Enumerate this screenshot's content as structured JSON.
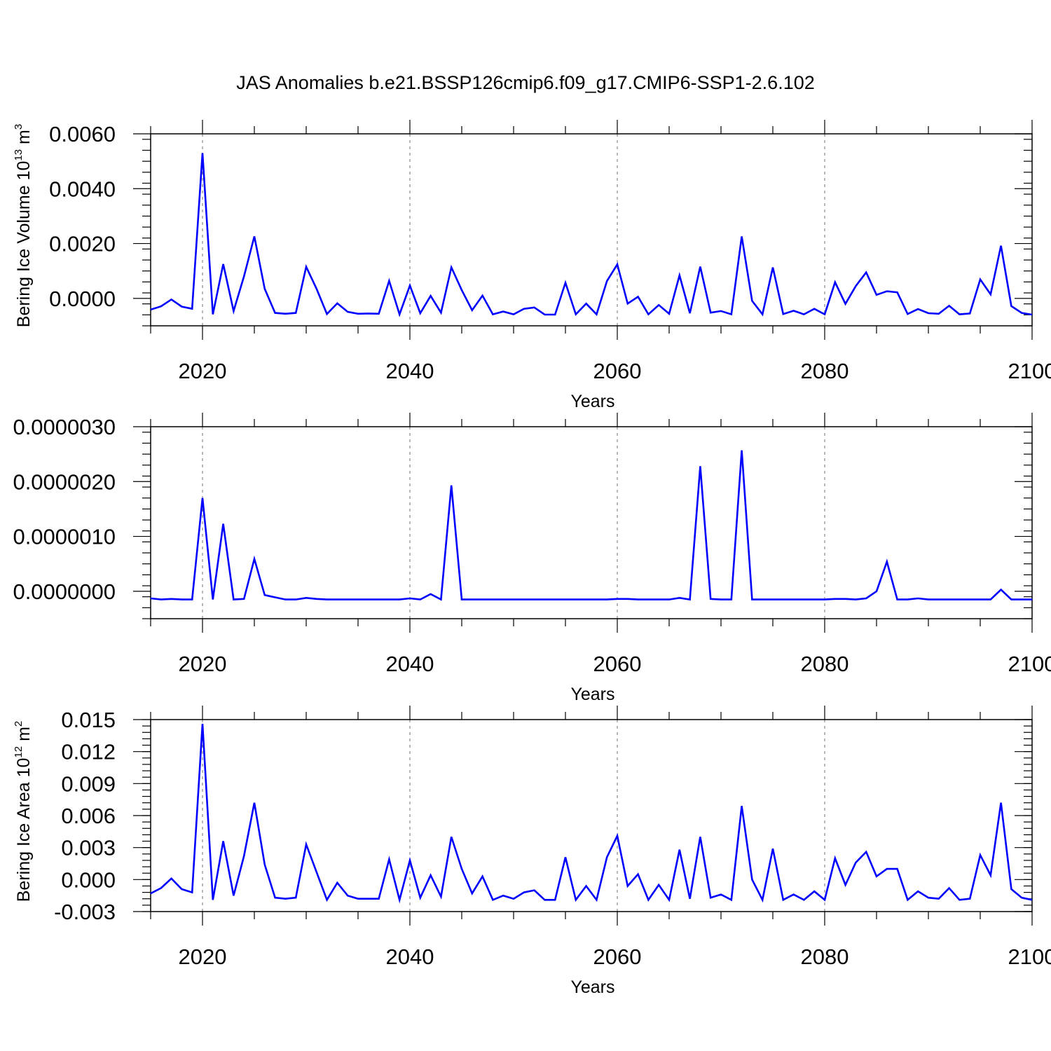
{
  "title": "JAS Anomalies b.e21.BSSP126cmip6.f09_g17.CMIP6-SSP1-2.6.102",
  "line_color": "#0000ff",
  "chart_data": [
    {
      "type": "line",
      "xlabel": "Years",
      "ylabel": "Bering Ice Volume 10",
      "ylabel_exp": "13",
      "ylabel_unit": " m",
      "ylabel_unit_exp": "3",
      "xlim": [
        2015,
        2100
      ],
      "ylim": [
        -0.001,
        0.006
      ],
      "xticks": [
        2020,
        2040,
        2060,
        2080,
        2100
      ],
      "yticks": [
        0.0,
        0.002,
        0.004,
        0.006
      ],
      "ytick_labels": [
        "0.0000",
        "0.0020",
        "0.0040",
        "0.0060"
      ],
      "x_start": 2015,
      "values": [
        -0.00041,
        -0.00029,
        -4e-05,
        -0.0003,
        -0.00038,
        0.0053,
        -0.00058,
        0.00125,
        -0.00046,
        0.0008,
        0.00226,
        0.00035,
        -0.00053,
        -0.00056,
        -0.00053,
        0.00115,
        0.00035,
        -0.00057,
        -0.00018,
        -0.00049,
        -0.00056,
        -0.00055,
        -0.00056,
        0.00064,
        -0.00058,
        0.00047,
        -0.00054,
        9e-05,
        -0.00052,
        0.00113,
        0.0003,
        -0.00043,
        0.0001,
        -0.00058,
        -0.00048,
        -0.00058,
        -0.00038,
        -0.00033,
        -0.00059,
        -0.00059,
        0.00057,
        -0.00058,
        -0.00019,
        -0.00058,
        0.00063,
        0.00124,
        -0.00019,
        6e-05,
        -0.00058,
        -0.00024,
        -0.00056,
        0.00084,
        -0.00054,
        0.00116,
        -0.00052,
        -0.00046,
        -0.00058,
        0.00226,
        -9e-05,
        -0.00058,
        0.00113,
        -0.00057,
        -0.00045,
        -0.00058,
        -0.00038,
        -0.00058,
        0.00059,
        -0.0002,
        0.00045,
        0.00095,
        0.00013,
        0.00026,
        0.00022,
        -0.00057,
        -0.00039,
        -0.00054,
        -0.00056,
        -0.00027,
        -0.00058,
        -0.00055,
        0.00069,
        0.00015,
        0.00192,
        -0.00028,
        -0.00053,
        -0.00059
      ]
    },
    {
      "type": "line",
      "xlabel": "Years",
      "ylabel": "",
      "xlim": [
        2015,
        2100
      ],
      "ylim": [
        -5e-07,
        3e-06
      ],
      "xticks": [
        2020,
        2040,
        2060,
        2080,
        2100
      ],
      "yticks": [
        0.0,
        1e-06,
        2e-06,
        3e-06
      ],
      "ytick_labels": [
        "0.0000000",
        "0.0000010",
        "0.0000020",
        "0.0000030"
      ],
      "x_start": 2015,
      "values": [
        -1.3e-07,
        -1.5e-07,
        -1.4e-07,
        -1.5e-07,
        -1.5e-07,
        1.7e-06,
        -1.5e-07,
        1.23e-06,
        -1.5e-07,
        -1.4e-07,
        5.9e-07,
        -7e-08,
        -1.1e-07,
        -1.5e-07,
        -1.5e-07,
        -1.2e-07,
        -1.4e-07,
        -1.5e-07,
        -1.5e-07,
        -1.5e-07,
        -1.5e-07,
        -1.5e-07,
        -1.5e-07,
        -1.5e-07,
        -1.5e-07,
        -1.3e-07,
        -1.5e-07,
        -5e-08,
        -1.5e-07,
        1.93e-06,
        -1.5e-07,
        -1.5e-07,
        -1.5e-07,
        -1.5e-07,
        -1.5e-07,
        -1.5e-07,
        -1.5e-07,
        -1.5e-07,
        -1.5e-07,
        -1.5e-07,
        -1.5e-07,
        -1.5e-07,
        -1.5e-07,
        -1.5e-07,
        -1.5e-07,
        -1.4e-07,
        -1.4e-07,
        -1.5e-07,
        -1.5e-07,
        -1.5e-07,
        -1.5e-07,
        -1.2e-07,
        -1.5e-07,
        2.28e-06,
        -1.4e-07,
        -1.5e-07,
        -1.5e-07,
        2.57e-06,
        -1.5e-07,
        -1.5e-07,
        -1.5e-07,
        -1.5e-07,
        -1.5e-07,
        -1.5e-07,
        -1.5e-07,
        -1.5e-07,
        -1.4e-07,
        -1.4e-07,
        -1.5e-07,
        -1.3e-07,
        0.0,
        5.4e-07,
        -1.5e-07,
        -1.5e-07,
        -1.3e-07,
        -1.5e-07,
        -1.5e-07,
        -1.5e-07,
        -1.5e-07,
        -1.5e-07,
        -1.5e-07,
        -1.5e-07,
        3e-08,
        -1.5e-07,
        -1.5e-07,
        -1.5e-07
      ]
    },
    {
      "type": "line",
      "xlabel": "Years",
      "ylabel": "Bering Ice Area 10",
      "ylabel_exp": "12",
      "ylabel_unit": " m",
      "ylabel_unit_exp": "2",
      "xlim": [
        2015,
        2100
      ],
      "ylim": [
        -0.003,
        0.015
      ],
      "xticks": [
        2020,
        2040,
        2060,
        2080,
        2100
      ],
      "yticks": [
        -0.003,
        0.0,
        0.003,
        0.006,
        0.009,
        0.012,
        0.015
      ],
      "ytick_labels": [
        "-0.003",
        "0.000",
        "0.003",
        "0.006",
        "0.009",
        "0.012",
        "0.015"
      ],
      "x_start": 2015,
      "values": [
        -0.0013,
        -0.0008,
        0.0001,
        -0.0009,
        -0.0012,
        0.0146,
        -0.0019,
        0.0036,
        -0.0015,
        0.0022,
        0.0072,
        0.0014,
        -0.0017,
        -0.0018,
        -0.0017,
        0.0033,
        0.0007,
        -0.0019,
        -0.0003,
        -0.0015,
        -0.0018,
        -0.0018,
        -0.0018,
        0.0019,
        -0.0019,
        0.0018,
        -0.0017,
        0.0004,
        -0.0016,
        0.004,
        0.001,
        -0.0013,
        0.0003,
        -0.0019,
        -0.0015,
        -0.0018,
        -0.0012,
        -0.001,
        -0.0019,
        -0.0019,
        0.0021,
        -0.0019,
        -0.0006,
        -0.0019,
        0.0021,
        0.0041,
        -0.0006,
        0.0005,
        -0.0019,
        -0.0005,
        -0.0019,
        0.0028,
        -0.0018,
        0.004,
        -0.0017,
        -0.0014,
        -0.0019,
        0.0069,
        0.0,
        -0.0019,
        0.0029,
        -0.0019,
        -0.0014,
        -0.0019,
        -0.0011,
        -0.0019,
        0.002,
        -0.0005,
        0.0016,
        0.0026,
        0.0003,
        0.001,
        0.001,
        -0.0019,
        -0.0011,
        -0.0017,
        -0.0018,
        -0.0008,
        -0.0019,
        -0.0018,
        0.0023,
        0.0004,
        0.0072,
        -0.0009,
        -0.0017,
        -0.0019
      ]
    }
  ]
}
